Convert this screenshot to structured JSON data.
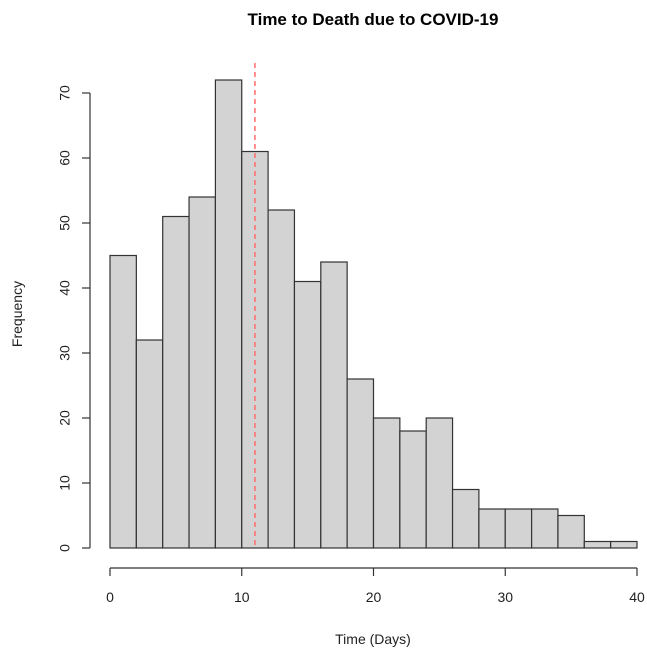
{
  "chart_data": {
    "type": "bar",
    "title": "Time to Death due to COVID-19",
    "xlabel": "Time (Days)",
    "ylabel": "Frequency",
    "bin_edges": [
      0,
      2,
      4,
      6,
      8,
      10,
      12,
      14,
      16,
      18,
      20,
      22,
      24,
      26,
      28,
      30,
      32,
      34,
      36,
      38,
      40
    ],
    "values": [
      45,
      32,
      51,
      54,
      72,
      61,
      52,
      41,
      44,
      26,
      20,
      18,
      20,
      9,
      6,
      6,
      6,
      5,
      1,
      1
    ],
    "xlim": [
      0,
      40
    ],
    "ylim": [
      0,
      70
    ],
    "x_ticks": [
      0,
      10,
      20,
      30,
      40
    ],
    "y_ticks": [
      0,
      10,
      20,
      30,
      40,
      50,
      60,
      70
    ],
    "reference_line": {
      "x": 11,
      "color": "#ff6b6b",
      "style": "dashed"
    },
    "bar_fill": "#d3d3d3",
    "bar_stroke": "#333333",
    "grid": false
  }
}
